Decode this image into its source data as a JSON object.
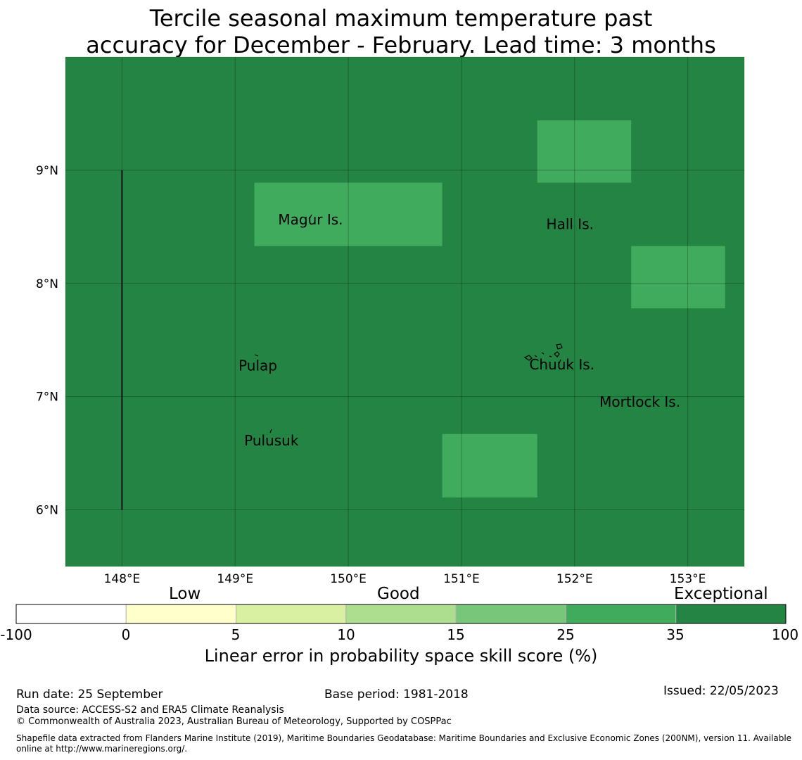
{
  "title": {
    "line1": "Tercile seasonal maximum temperature past",
    "line2": "accuracy for December - February. Lead time: 3 months"
  },
  "map": {
    "lon_range": [
      147.5,
      153.5
    ],
    "lat_range": [
      5.5,
      10.0
    ],
    "background_category": "Exceptional",
    "lon_ticks": [
      148,
      149,
      150,
      151,
      152,
      153
    ],
    "lon_tick_labels": [
      "148°E",
      "149°E",
      "150°E",
      "151°E",
      "152°E",
      "153°E"
    ],
    "lat_ticks": [
      6,
      7,
      8,
      9
    ],
    "lat_tick_labels": [
      "6°N",
      "7°N",
      "8°N",
      "9°N"
    ],
    "grid": true,
    "cells": [
      {
        "lon": [
          149.17,
          150.83
        ],
        "lat": [
          8.33,
          8.89
        ],
        "category": "25-35"
      },
      {
        "lon": [
          151.67,
          152.5
        ],
        "lat": [
          8.89,
          9.44
        ],
        "category": "25-35"
      },
      {
        "lon": [
          152.5,
          153.33
        ],
        "lat": [
          7.78,
          8.33
        ],
        "category": "25-35"
      },
      {
        "lon": [
          150.83,
          151.67
        ],
        "lat": [
          6.11,
          6.67
        ],
        "category": "25-35"
      }
    ],
    "places": [
      {
        "name": "Magur Is.",
        "lon": 149.38,
        "lat": 8.52
      },
      {
        "name": "Hall Is.",
        "lon": 151.75,
        "lat": 8.48
      },
      {
        "name": "Pulap",
        "lon": 149.03,
        "lat": 7.23
      },
      {
        "name": "Chuuk Is.",
        "lon": 151.6,
        "lat": 7.24
      },
      {
        "name": "Mortlock Is.",
        "lon": 152.22,
        "lat": 6.91
      },
      {
        "name": "Pulusuk",
        "lon": 149.08,
        "lat": 6.57
      }
    ],
    "boundary_line": {
      "lon": 148,
      "lat": [
        6.0,
        9.0
      ]
    }
  },
  "colorbar": {
    "headers": [
      "Low",
      "Good",
      "Exceptional"
    ],
    "bounds": [
      "-100",
      "0",
      "5",
      "10",
      "15",
      "25",
      "35",
      "100"
    ],
    "colors": [
      "#ffffff",
      "#ffffcc",
      "#d9f0a3",
      "#addd8e",
      "#78c679",
      "#41ab5d",
      "#238443"
    ],
    "title": "Linear error in probability space skill score (%)"
  },
  "footer": {
    "run_date": "Run date: 25 September",
    "base_period": "Base period: 1981-2018",
    "issued": "Issued: 22/05/2023",
    "data_source": "Data source: ACCESS-S2 and ERA5 Climate Reanalysis",
    "copyright": "© Commonwealth of Australia 2023, Australian Bureau of Meteorology, Supported by COSPPac",
    "shapefile_line1": "Shapefile data extracted from Flanders Marine Institute (2019), Maritime Boundaries Geodatabase: Maritime Boundaries and Exclusive Economic Zones (200NM), version 11. Available",
    "shapefile_line2": "online at http://www.marineregions.org/."
  }
}
